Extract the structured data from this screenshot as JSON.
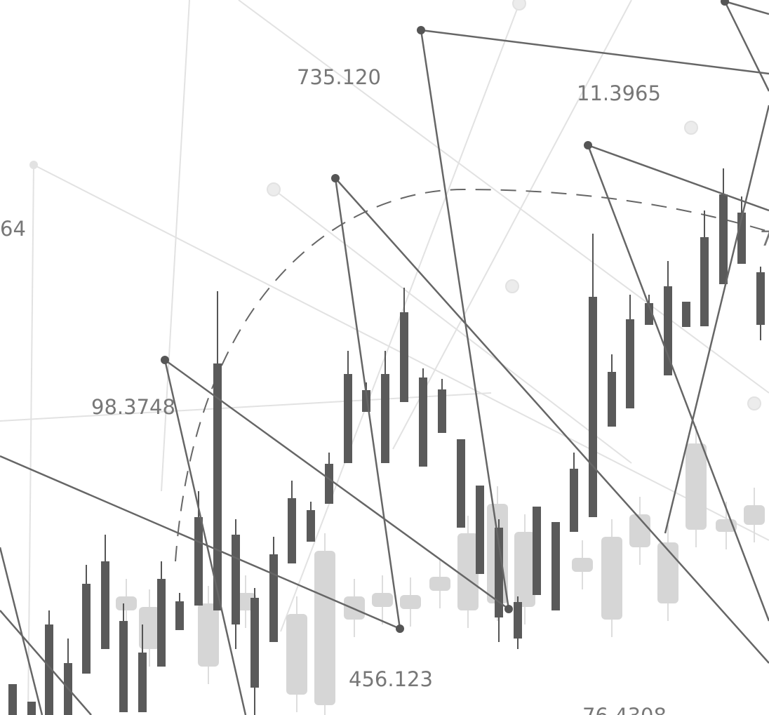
{
  "labels": {
    "a": "735.120",
    "b": "11.3965",
    "c": "64",
    "d": "98.3748",
    "e": "456.123",
    "f": "76.4308",
    "g": "7"
  }
}
